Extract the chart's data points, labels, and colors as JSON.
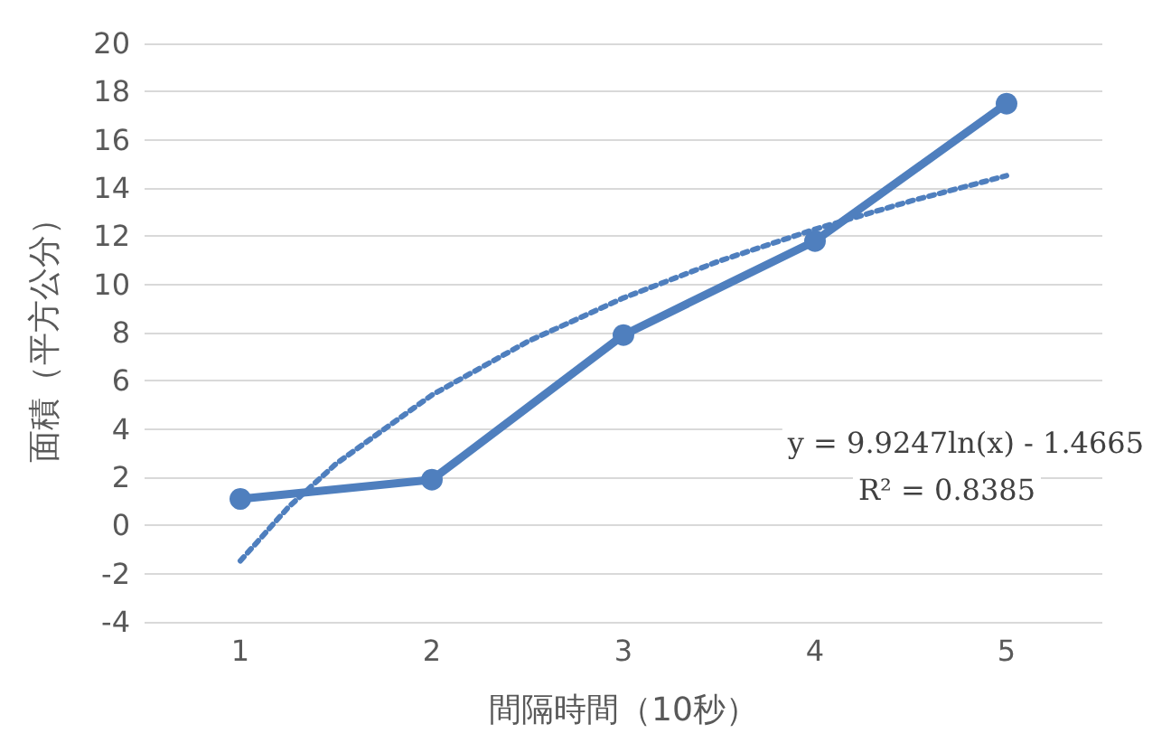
{
  "chart_data": {
    "type": "line",
    "xlabel": "間隔時間（10秒）",
    "ylabel": "面積（平方公分）",
    "x": [
      1,
      2,
      3,
      4,
      5
    ],
    "xlim": [
      0.5,
      5.5
    ],
    "xticks": [
      1,
      2,
      3,
      4,
      5
    ],
    "ylim": [
      -4,
      20
    ],
    "yticks": [
      -4,
      -2,
      0,
      2,
      4,
      6,
      8,
      10,
      12,
      14,
      16,
      18,
      20
    ],
    "grid": "y",
    "series": [
      {
        "color": "#4f7fbe",
        "marker": "circle",
        "line_style": "solid",
        "values": [
          1.1,
          1.9,
          7.9,
          11.8,
          17.5
        ]
      },
      {
        "color": "#4f7fbe",
        "marker": "none",
        "line_style": "dotted",
        "x": [
          1,
          1.25,
          1.5,
          2,
          2.5,
          3,
          3.5,
          4,
          4.5,
          5
        ],
        "values": [
          -1.47,
          0.75,
          2.56,
          5.41,
          7.63,
          9.44,
          10.97,
          12.29,
          13.46,
          14.51
        ]
      }
    ],
    "annotations": [
      "y = 9.9247ln(x) - 1.4665",
      "R² = 0.8385"
    ]
  }
}
